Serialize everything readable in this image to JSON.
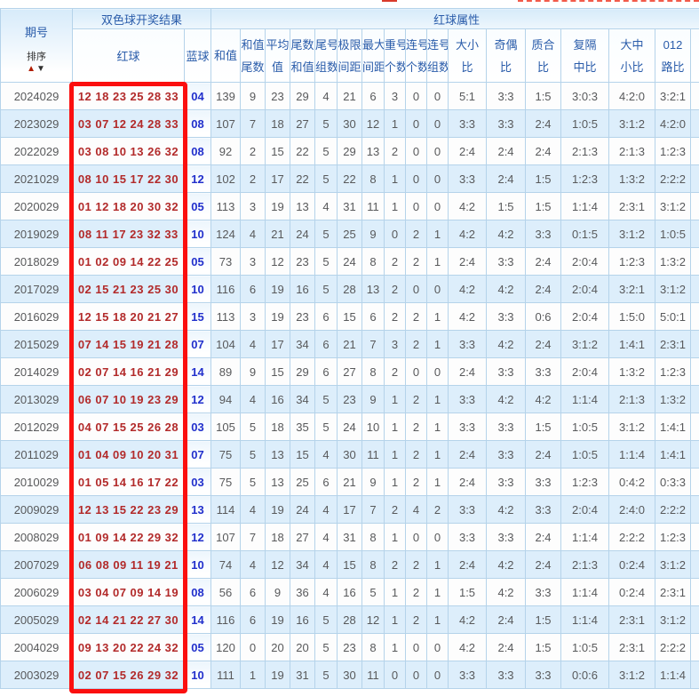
{
  "header": {
    "period": "期号",
    "sort": "排序",
    "sort_up": "▲",
    "sort_down": "▼",
    "group_result": "双色球开奖结果",
    "group_attributes": "红球属性",
    "red": "红球",
    "blue": "蓝球",
    "cols": [
      {
        "l1": "和值",
        "l2": ""
      },
      {
        "l1": "和值",
        "l2": "尾数"
      },
      {
        "l1": "平均",
        "l2": "值"
      },
      {
        "l1": "尾数",
        "l2": "和值"
      },
      {
        "l1": "尾号",
        "l2": "组数"
      },
      {
        "l1": "极限",
        "l2": "间距"
      },
      {
        "l1": "最大",
        "l2": "间距"
      },
      {
        "l1": "重号",
        "l2": "个数"
      },
      {
        "l1": "连号",
        "l2": "个数"
      },
      {
        "l1": "连号",
        "l2": "组数"
      },
      {
        "l1": "大小",
        "l2": "比"
      },
      {
        "l1": "奇偶",
        "l2": "比"
      },
      {
        "l1": "质合",
        "l2": "比"
      },
      {
        "l1": "复隔",
        "l2": "中比"
      },
      {
        "l1": "大中",
        "l2": "小比"
      },
      {
        "l1": "012",
        "l2": "路比"
      }
    ]
  },
  "rows": [
    {
      "period": "2024029",
      "reds": "12 18 23 25 28 33",
      "blue": "04",
      "vals": [
        "139",
        "9",
        "23",
        "29",
        "4",
        "21",
        "6",
        "3",
        "0",
        "0",
        "5:1",
        "3:3",
        "1:5",
        "3:0:3",
        "4:2:0",
        "3:2:1"
      ]
    },
    {
      "period": "2023029",
      "reds": "03 07 12 24 28 33",
      "blue": "08",
      "vals": [
        "107",
        "7",
        "18",
        "27",
        "5",
        "30",
        "12",
        "1",
        "0",
        "0",
        "3:3",
        "3:3",
        "2:4",
        "1:0:5",
        "3:1:2",
        "4:2:0"
      ]
    },
    {
      "period": "2022029",
      "reds": "03 08 10 13 26 32",
      "blue": "08",
      "vals": [
        "92",
        "2",
        "15",
        "22",
        "5",
        "29",
        "13",
        "2",
        "0",
        "0",
        "2:4",
        "2:4",
        "2:4",
        "2:1:3",
        "2:1:3",
        "1:2:3"
      ]
    },
    {
      "period": "2021029",
      "reds": "08 10 15 17 22 30",
      "blue": "12",
      "vals": [
        "102",
        "2",
        "17",
        "22",
        "5",
        "22",
        "8",
        "1",
        "0",
        "0",
        "3:3",
        "2:4",
        "1:5",
        "1:2:3",
        "1:3:2",
        "2:2:2"
      ]
    },
    {
      "period": "2020029",
      "reds": "01 12 18 20 30 32",
      "blue": "05",
      "vals": [
        "113",
        "3",
        "19",
        "13",
        "4",
        "31",
        "11",
        "1",
        "0",
        "0",
        "4:2",
        "1:5",
        "1:5",
        "1:1:4",
        "2:3:1",
        "3:1:2"
      ]
    },
    {
      "period": "2019029",
      "reds": "08 11 17 23 32 33",
      "blue": "10",
      "vals": [
        "124",
        "4",
        "21",
        "24",
        "5",
        "25",
        "9",
        "0",
        "2",
        "1",
        "4:2",
        "4:2",
        "3:3",
        "0:1:5",
        "3:1:2",
        "1:0:5"
      ]
    },
    {
      "period": "2018029",
      "reds": "01 02 09 14 22 25",
      "blue": "05",
      "vals": [
        "73",
        "3",
        "12",
        "23",
        "5",
        "24",
        "8",
        "2",
        "2",
        "1",
        "2:4",
        "3:3",
        "2:4",
        "2:0:4",
        "1:2:3",
        "1:3:2"
      ]
    },
    {
      "period": "2017029",
      "reds": "02 15 21 23 25 30",
      "blue": "10",
      "vals": [
        "116",
        "6",
        "19",
        "16",
        "5",
        "28",
        "13",
        "2",
        "0",
        "0",
        "4:2",
        "4:2",
        "2:4",
        "2:0:4",
        "3:2:1",
        "3:1:2"
      ]
    },
    {
      "period": "2016029",
      "reds": "12 15 18 20 21 27",
      "blue": "15",
      "vals": [
        "113",
        "3",
        "19",
        "23",
        "6",
        "15",
        "6",
        "2",
        "2",
        "1",
        "4:2",
        "3:3",
        "0:6",
        "2:0:4",
        "1:5:0",
        "5:0:1"
      ]
    },
    {
      "period": "2015029",
      "reds": "07 14 15 19 21 28",
      "blue": "07",
      "vals": [
        "104",
        "4",
        "17",
        "34",
        "6",
        "21",
        "7",
        "3",
        "2",
        "1",
        "3:3",
        "4:2",
        "2:4",
        "3:1:2",
        "1:4:1",
        "2:3:1"
      ]
    },
    {
      "period": "2014029",
      "reds": "02 07 14 16 21 29",
      "blue": "14",
      "vals": [
        "89",
        "9",
        "15",
        "29",
        "6",
        "27",
        "8",
        "2",
        "0",
        "0",
        "2:4",
        "3:3",
        "3:3",
        "2:0:4",
        "1:3:2",
        "1:2:3"
      ]
    },
    {
      "period": "2013029",
      "reds": "06 07 10 19 23 29",
      "blue": "12",
      "vals": [
        "94",
        "4",
        "16",
        "34",
        "5",
        "23",
        "9",
        "1",
        "2",
        "1",
        "3:3",
        "4:2",
        "4:2",
        "1:1:4",
        "2:1:3",
        "1:3:2"
      ]
    },
    {
      "period": "2012029",
      "reds": "04 07 15 25 26 28",
      "blue": "03",
      "vals": [
        "105",
        "5",
        "18",
        "35",
        "5",
        "24",
        "10",
        "1",
        "2",
        "1",
        "3:3",
        "3:3",
        "1:5",
        "1:0:5",
        "3:1:2",
        "1:4:1"
      ]
    },
    {
      "period": "2011029",
      "reds": "01 04 09 10 20 31",
      "blue": "07",
      "vals": [
        "75",
        "5",
        "13",
        "15",
        "4",
        "30",
        "11",
        "1",
        "2",
        "1",
        "2:4",
        "3:3",
        "2:4",
        "1:0:5",
        "1:1:4",
        "1:4:1"
      ]
    },
    {
      "period": "2010029",
      "reds": "01 05 14 16 17 22",
      "blue": "03",
      "vals": [
        "75",
        "5",
        "13",
        "25",
        "6",
        "21",
        "9",
        "1",
        "2",
        "1",
        "2:4",
        "3:3",
        "3:3",
        "1:2:3",
        "0:4:2",
        "0:3:3"
      ]
    },
    {
      "period": "2009029",
      "reds": "12 13 15 22 23 29",
      "blue": "13",
      "vals": [
        "114",
        "4",
        "19",
        "24",
        "4",
        "17",
        "7",
        "2",
        "4",
        "2",
        "3:3",
        "4:2",
        "3:3",
        "2:0:4",
        "2:4:0",
        "2:2:2"
      ]
    },
    {
      "period": "2008029",
      "reds": "01 09 14 22 29 32",
      "blue": "12",
      "vals": [
        "107",
        "7",
        "18",
        "27",
        "4",
        "31",
        "8",
        "1",
        "0",
        "0",
        "3:3",
        "3:3",
        "2:4",
        "1:1:4",
        "2:2:2",
        "1:2:3"
      ]
    },
    {
      "period": "2007029",
      "reds": "06 08 09 11 19 21",
      "blue": "10",
      "vals": [
        "74",
        "4",
        "12",
        "34",
        "4",
        "15",
        "8",
        "2",
        "2",
        "1",
        "2:4",
        "4:2",
        "2:4",
        "2:1:3",
        "0:2:4",
        "3:1:2"
      ]
    },
    {
      "period": "2006029",
      "reds": "03 04 07 09 14 19",
      "blue": "08",
      "vals": [
        "56",
        "6",
        "9",
        "36",
        "4",
        "16",
        "5",
        "1",
        "2",
        "1",
        "1:5",
        "4:2",
        "3:3",
        "1:1:4",
        "0:2:4",
        "2:3:1"
      ]
    },
    {
      "period": "2005029",
      "reds": "02 14 21 22 27 30",
      "blue": "14",
      "vals": [
        "116",
        "6",
        "19",
        "16",
        "5",
        "28",
        "12",
        "1",
        "2",
        "1",
        "4:2",
        "2:4",
        "1:5",
        "1:1:4",
        "2:3:1",
        "3:1:2"
      ]
    },
    {
      "period": "2004029",
      "reds": "09 13 20 22 24 32",
      "blue": "05",
      "vals": [
        "120",
        "0",
        "20",
        "20",
        "5",
        "23",
        "8",
        "1",
        "0",
        "0",
        "4:2",
        "2:4",
        "1:5",
        "1:0:5",
        "2:3:1",
        "2:2:2"
      ]
    },
    {
      "period": "2003029",
      "reds": "02 07 15 26 29 32",
      "blue": "10",
      "vals": [
        "111",
        "1",
        "19",
        "31",
        "5",
        "30",
        "11",
        "0",
        "0",
        "0",
        "3:3",
        "3:3",
        "3:3",
        "0:0:6",
        "3:1:2",
        "1:1:4"
      ]
    }
  ],
  "colors": {
    "header_text": "#2a5caa",
    "red_ball_text": "#b22a2a",
    "blue_ball_text": "#2230cc",
    "highlight_box": "#fb0f0f",
    "alt_row_bg": "#ddeefb",
    "grid_border": "#b5d3ea"
  }
}
